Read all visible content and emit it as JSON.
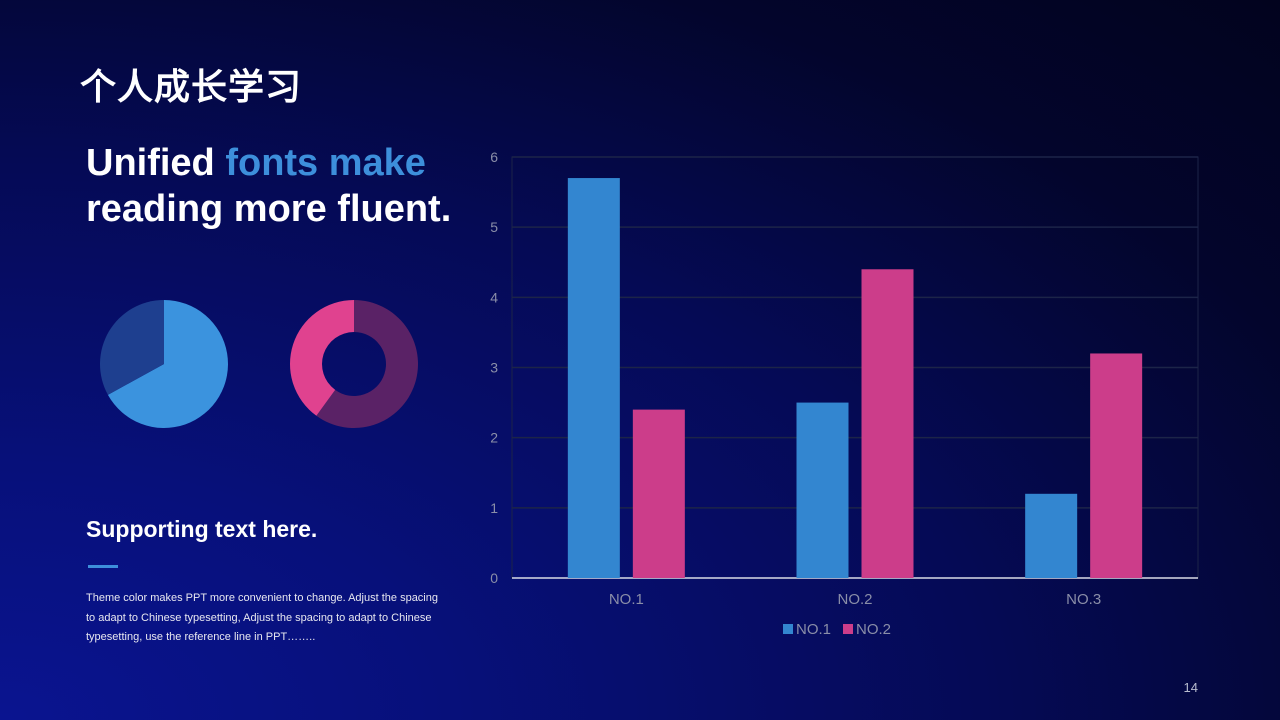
{
  "slide": {
    "title": "个人成长学习",
    "headline_part1": "Unified ",
    "headline_accent": "fonts make",
    "headline_part2": "reading more fluent.",
    "supporting_title": "Supporting text here.",
    "body": "Theme color makes PPT more convenient  to change. Adjust the spacing to adapt to Chinese typesetting, Adjust the spacing to adapt to Chinese typesetting, use the reference line in PPT……..",
    "page_number": "14"
  },
  "colors": {
    "accent_blue": "#3d8fdb",
    "dark_blue": "#1e3f8f",
    "pink": "#d63c8c",
    "purple": "#5a2266",
    "gridline": "#1c2448"
  },
  "chart_data": [
    {
      "type": "pie",
      "slices": [
        {
          "value": 67,
          "color": "#3b93de"
        },
        {
          "value": 33,
          "color": "#1e3f8f"
        }
      ]
    },
    {
      "type": "pie",
      "variant": "donut",
      "slices": [
        {
          "value": 60,
          "color": "#5a2266"
        },
        {
          "value": 40,
          "color": "#e0428f"
        }
      ]
    },
    {
      "type": "bar",
      "categories": [
        "NO.1",
        "NO.2",
        "NO.3"
      ],
      "series": [
        {
          "name": "NO.1",
          "values": [
            5.7,
            2.5,
            1.2
          ],
          "color": "#3386d0"
        },
        {
          "name": "NO.2",
          "values": [
            2.4,
            4.4,
            3.2
          ],
          "color": "#cc3d8a"
        }
      ],
      "ylim": [
        0,
        6
      ],
      "yticks": [
        "0",
        "1",
        "2",
        "3",
        "4",
        "5",
        "6"
      ],
      "grid": true,
      "legend": "bottom"
    }
  ]
}
